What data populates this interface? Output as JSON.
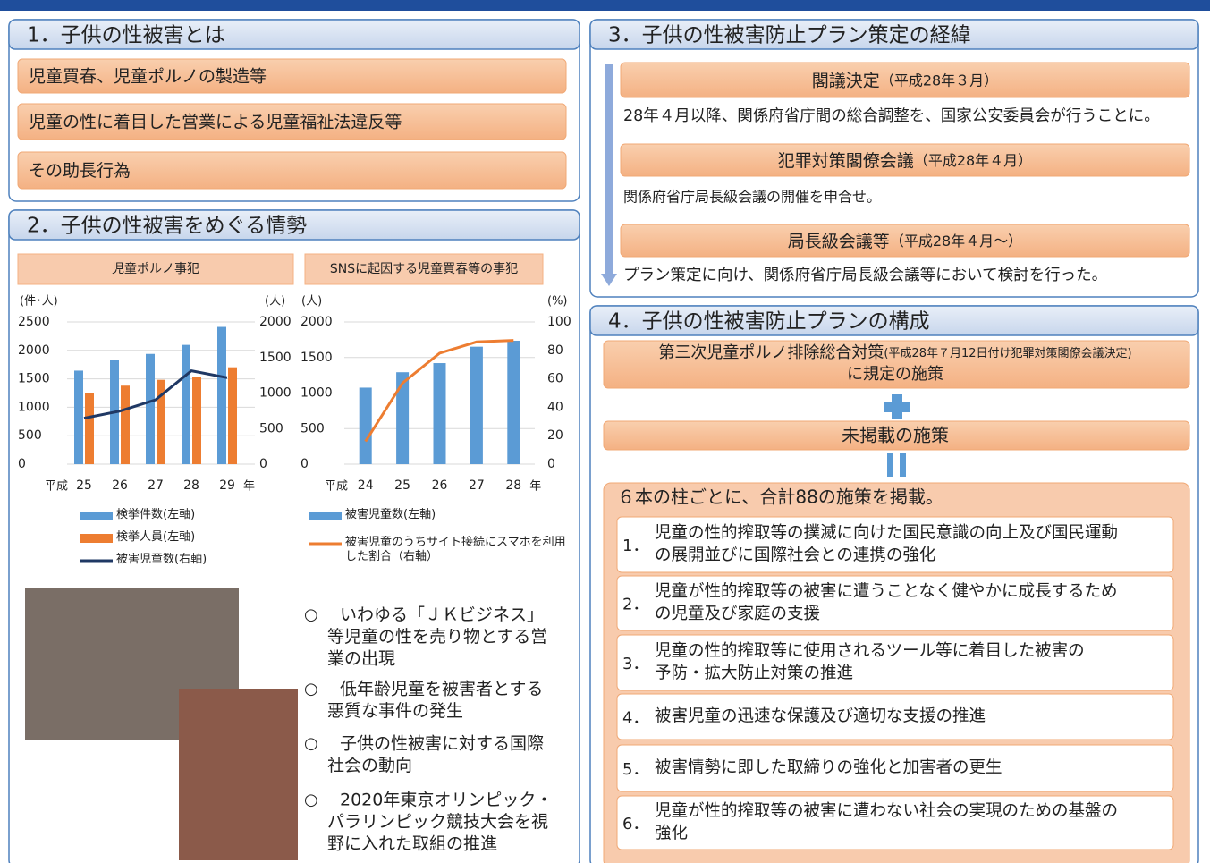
{
  "section1": {
    "title": "1．子供の性被害とは",
    "items": [
      "児童買春、児童ポルノの製造等",
      "児童の性に着目した営業による児童福祉法違反等",
      "その助長行為"
    ]
  },
  "section2": {
    "title": "2．子供の性被害をめぐる情勢",
    "bullet_mark": "○",
    "bullets": [
      [
        "いわゆる「ＪＫビジネス」",
        "等児童の性を売り物とする営",
        "業の出現"
      ],
      [
        "低年齢児童を被害者とする",
        "悪質な事件の発生"
      ],
      [
        "子供の性被害に対する国際",
        "社会の動向"
      ],
      [
        "2020年東京オリンピック・",
        "パラリンピック競技大会を視",
        "野に入れた取組の推進"
      ]
    ]
  },
  "chart_data": [
    {
      "type": "combo",
      "title": "児童ポルノ事犯",
      "ylabel": "(件･人)",
      "y2label": "(人)",
      "x_prefix": "平成",
      "x_suffix": "年",
      "categories": [
        "25",
        "26",
        "27",
        "28",
        "29"
      ],
      "series": [
        {
          "name": "検挙件数(左軸)",
          "type": "bar",
          "color": "#5b9bd5",
          "values": [
            1644,
            1828,
            1938,
            2097,
            2413
          ]
        },
        {
          "name": "検挙人員(左軸)",
          "type": "bar",
          "color": "#ed7d31",
          "values": [
            1252,
            1380,
            1483,
            1531,
            1703
          ]
        },
        {
          "name": "被害児童数(右軸)",
          "type": "line",
          "color": "#1f3864",
          "axis": "y2",
          "values": [
            646,
            746,
            905,
            1313,
            1216
          ]
        }
      ],
      "ylim": [
        0,
        2500
      ],
      "yticks": [
        0,
        500,
        1000,
        1500,
        2000,
        2500
      ],
      "y2lim": [
        0,
        2000
      ],
      "y2ticks": [
        0,
        500,
        1000,
        1500,
        2000
      ],
      "grid": true
    },
    {
      "type": "combo",
      "title": "SNSに起因する児童買春等の事犯",
      "ylabel": "(人)",
      "y2label": "(%)",
      "x_prefix": "平成",
      "x_suffix": "年",
      "categories": [
        "24",
        "25",
        "26",
        "27",
        "28"
      ],
      "series": [
        {
          "name": "被害児童数(左軸)",
          "type": "bar",
          "color": "#5b9bd5",
          "values": [
            1076,
            1293,
            1421,
            1652,
            1736
          ]
        },
        {
          "name": "被害児童のうちサイト接続にスマホを利用した割合（右軸）",
          "type": "line",
          "color": "#ed7d31",
          "axis": "y2",
          "values": [
            16,
            57,
            78,
            86,
            87
          ]
        }
      ],
      "ylim": [
        0,
        2000
      ],
      "yticks": [
        0,
        500,
        1000,
        1500,
        2000
      ],
      "y2lim": [
        0,
        100
      ],
      "y2ticks": [
        0,
        20,
        40,
        60,
        80,
        100
      ],
      "grid": true
    }
  ],
  "section3": {
    "title": "3．子供の性被害防止プラン策定の経緯",
    "steps": [
      {
        "heading": "閣議決定",
        "date": "（平成28年３月）",
        "text": "28年４月以降、関係府省庁間の総合調整を、国家公安委員会が行うことに。"
      },
      {
        "heading": "犯罪対策閣僚会議",
        "date": "（平成28年４月）",
        "text": "関係府省庁局長級会議の開催を申合せ。"
      },
      {
        "heading": "局長級会議等",
        "date": "（平成28年４月～）",
        "text": "プラン策定に向け、関係府省庁局長級会議等において検討を行った。"
      }
    ]
  },
  "section4": {
    "title": "4．子供の性被害防止プランの構成",
    "source": {
      "main": "第三次児童ポルノ排除総合対策",
      "note": "(平成28年７月12日付け犯罪対策閣僚会議決定)",
      "line2": "に規定の施策"
    },
    "addition": "未掲載の施策",
    "summary": "６本の柱ごとに、合計88の施策を掲載。",
    "pillars": [
      {
        "number": "1．",
        "lines": [
          "児童の性的搾取等の撲滅に向けた国民意識の向上及び国民運動",
          "の展開並びに国際社会との連携の強化"
        ]
      },
      {
        "number": "2．",
        "lines": [
          "児童が性的搾取等の被害に遭うことなく健やかに成長するため",
          "の児童及び家庭の支援"
        ]
      },
      {
        "number": "3．",
        "lines": [
          "児童の性的搾取等に使用されるツール等に着目した被害の",
          "予防・拡大防止対策の推進"
        ]
      },
      {
        "number": "4．",
        "lines": [
          "被害児童の迅速な保護及び適切な支援の推進"
        ]
      },
      {
        "number": "5．",
        "lines": [
          "被害情勢に即した取締りの強化と加害者の更生"
        ]
      },
      {
        "number": "6．",
        "lines": [
          "児童が性的搾取等の被害に遭わない社会の実現のための基盤の",
          "強化"
        ]
      }
    ]
  }
}
